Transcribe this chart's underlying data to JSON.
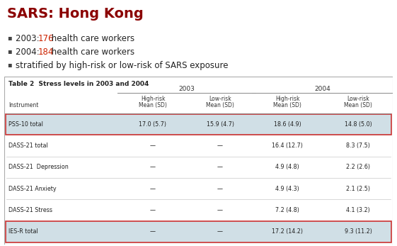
{
  "title": "SARS: Hong Kong",
  "title_color": "#8B0000",
  "bullets": [
    [
      "2003: ",
      "176",
      " health care workers"
    ],
    [
      "2004: ",
      "184",
      " health care workers"
    ],
    [
      "stratified by high-risk or low-risk of SARS exposure"
    ]
  ],
  "bullet_num_color": "#cc2200",
  "bullet_text_color": "#222222",
  "table_title": "Table 2  Stress levels in 2003 and 2004",
  "table_bg": "#d0dfe6",
  "table_border_color": "#aaaaaa",
  "highlight_border": "#cc3333",
  "year_headers": [
    "2003",
    "2004"
  ],
  "col_headers": [
    "High-risk\nMean (SD)",
    "Low-risk\nMean (SD)",
    "High-risk\nMean (SD)",
    "Low-risk\nMean (SD)"
  ],
  "row_header": "Instrument",
  "rows": [
    {
      "instrument": "PSS-10 total",
      "vals": [
        "17.0 (5.7)",
        "15.9 (4.7)",
        "18.6 (4.9)",
        "14.8 (5.0)"
      ],
      "highlight": true
    },
    {
      "instrument": "DASS-21 total",
      "vals": [
        "—",
        "—",
        "16.4 (12.7)",
        "8.3 (7.5)"
      ],
      "highlight": false
    },
    {
      "instrument": "DASS-21  Depression",
      "vals": [
        "—",
        "—",
        "4.9 (4.8)",
        "2.2 (2.6)"
      ],
      "highlight": false
    },
    {
      "instrument": "DASS-21 Anxiety",
      "vals": [
        "—",
        "—",
        "4.9 (4.3)",
        "2.1 (2.5)"
      ],
      "highlight": false
    },
    {
      "instrument": "DASS-21 Stress",
      "vals": [
        "—",
        "—",
        "7.2 (4.8)",
        "4.1 (3.2)"
      ],
      "highlight": false
    },
    {
      "instrument": "IES-R total",
      "vals": [
        "—",
        "—",
        "17.2 (14.2)",
        "9.3 (11.2)"
      ],
      "highlight": true
    }
  ],
  "background": "#ffffff",
  "figw": 5.61,
  "figh": 3.47,
  "dpi": 100
}
